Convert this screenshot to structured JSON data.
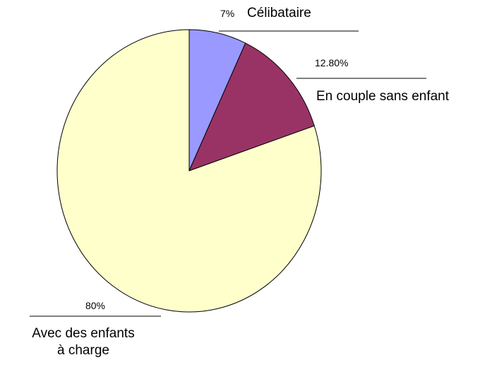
{
  "chart_data": {
    "type": "pie",
    "categories": [
      "Célibataire",
      "En couple sans enfant",
      "Avec des enfants\nà charge"
    ],
    "values": [
      7,
      12.8,
      80
    ],
    "value_labels": [
      "7%",
      "12.80%",
      "80%"
    ],
    "colors": [
      "#9999ff",
      "#993366",
      "#ffffcc"
    ],
    "start_angle": 0,
    "direction": "clockwise"
  }
}
